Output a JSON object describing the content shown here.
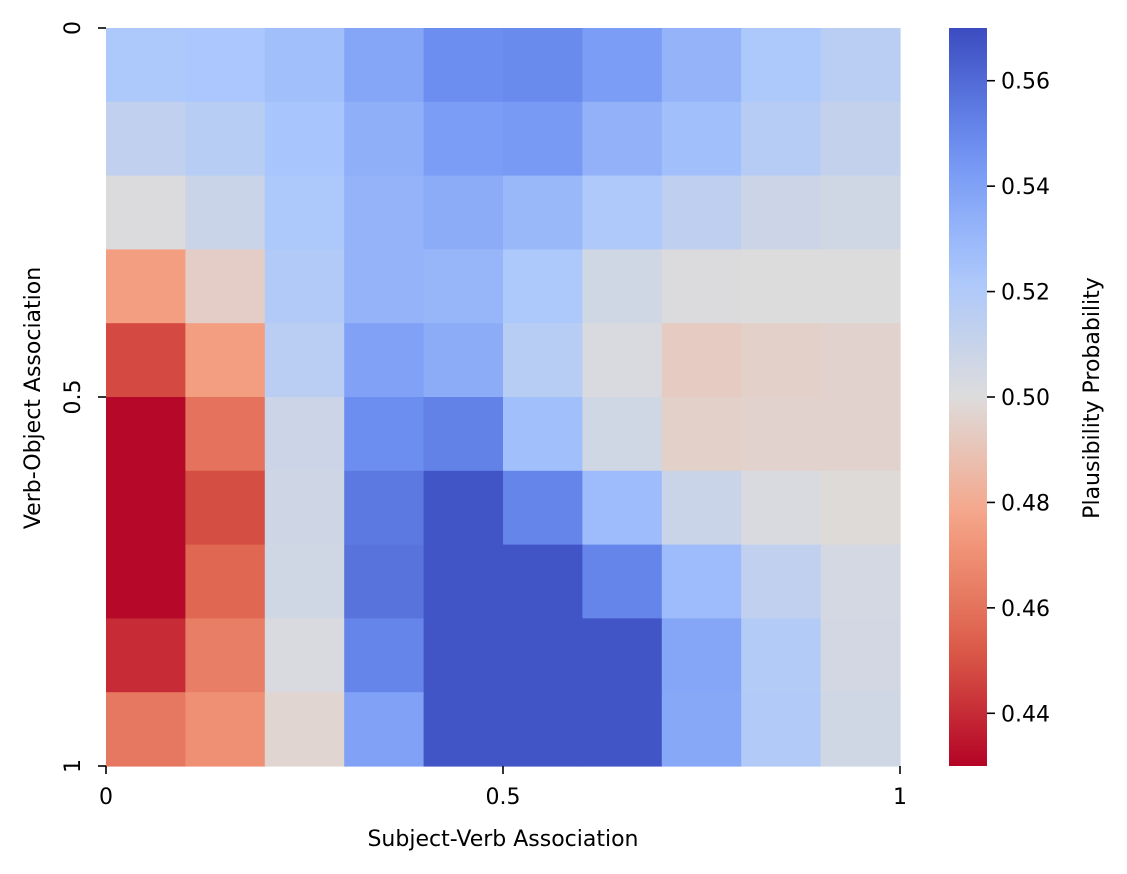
{
  "chart_data": {
    "type": "heatmap",
    "title": "",
    "xlabel": "Subject-Verb Association",
    "ylabel": "Verb-Object Association",
    "colorbar_label": "Plausibility Probability",
    "colormap": "coolwarm",
    "color_stops": [
      "#b40426",
      "#dd5f4b",
      "#f6a385",
      "#dddcdc",
      "#aac7fd",
      "#6f92f3",
      "#3b4cc0"
    ],
    "vmin": 0.43,
    "vmax": 0.57,
    "x_ticks": [
      0,
      0.5,
      1
    ],
    "x_tick_labels": [
      "0",
      "0.5",
      "1"
    ],
    "y_ticks": [
      0,
      0.5,
      1
    ],
    "y_tick_labels": [
      "0",
      "0.5",
      "1"
    ],
    "y_axis_direction": "top-to-bottom",
    "colorbar_ticks": [
      0.44,
      0.46,
      0.48,
      0.5,
      0.52,
      0.54,
      0.56
    ],
    "colorbar_tick_labels": [
      "0.44",
      "0.46",
      "0.48",
      "0.50",
      "0.52",
      "0.54",
      "0.56"
    ],
    "rows": 10,
    "cols": 10,
    "values": [
      [
        0.522,
        0.523,
        0.527,
        0.538,
        0.548,
        0.549,
        0.542,
        0.532,
        0.522,
        0.516
      ],
      [
        0.513,
        0.517,
        0.524,
        0.534,
        0.542,
        0.543,
        0.533,
        0.527,
        0.518,
        0.512
      ],
      [
        0.501,
        0.509,
        0.522,
        0.532,
        0.535,
        0.53,
        0.521,
        0.514,
        0.508,
        0.506
      ],
      [
        0.475,
        0.494,
        0.52,
        0.532,
        0.531,
        0.522,
        0.506,
        0.501,
        0.5,
        0.5
      ],
      [
        0.448,
        0.475,
        0.516,
        0.54,
        0.535,
        0.517,
        0.502,
        0.493,
        0.495,
        0.496
      ],
      [
        0.431,
        0.46,
        0.508,
        0.548,
        0.552,
        0.527,
        0.506,
        0.495,
        0.496,
        0.496
      ],
      [
        0.431,
        0.449,
        0.507,
        0.555,
        0.567,
        0.551,
        0.528,
        0.509,
        0.502,
        0.499
      ],
      [
        0.431,
        0.456,
        0.506,
        0.557,
        0.567,
        0.567,
        0.551,
        0.528,
        0.513,
        0.504
      ],
      [
        0.44,
        0.464,
        0.502,
        0.551,
        0.567,
        0.567,
        0.567,
        0.538,
        0.519,
        0.505
      ],
      [
        0.462,
        0.47,
        0.497,
        0.54,
        0.567,
        0.567,
        0.567,
        0.537,
        0.52,
        0.506
      ]
    ]
  }
}
